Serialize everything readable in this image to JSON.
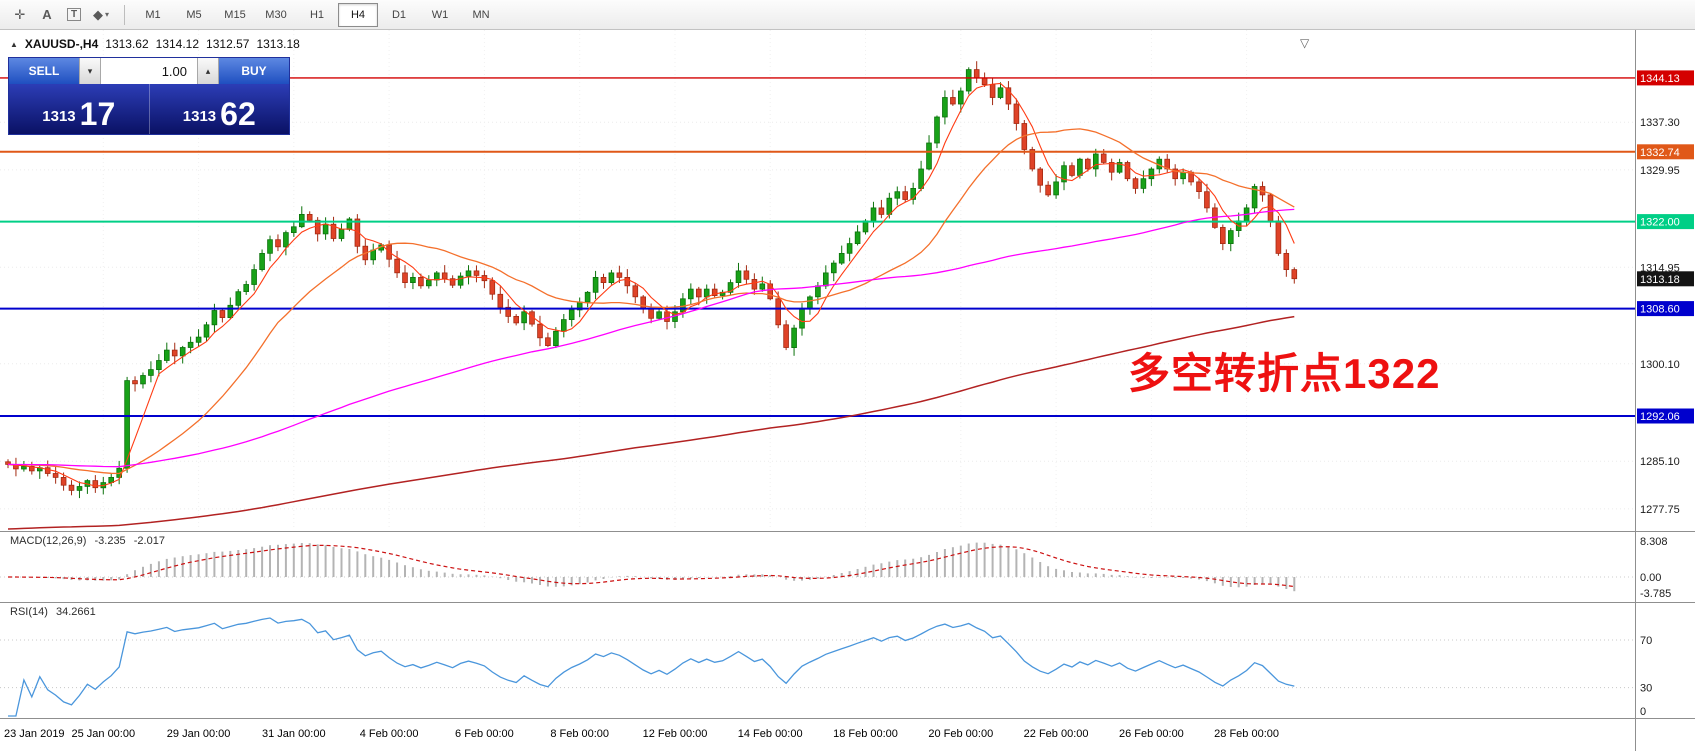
{
  "toolbar": {
    "tools": [
      {
        "name": "crosshair-tool",
        "glyph": "✛"
      },
      {
        "name": "label-tool",
        "glyph": "A"
      },
      {
        "name": "text-tool",
        "glyph": "T",
        "boxed": true
      },
      {
        "name": "shapes-tool",
        "glyph": "◆",
        "dropdown": true
      }
    ],
    "timeframes": [
      {
        "label": "M1"
      },
      {
        "label": "M5"
      },
      {
        "label": "M15"
      },
      {
        "label": "M30"
      },
      {
        "label": "H1"
      },
      {
        "label": "H4",
        "active": true
      },
      {
        "label": "D1"
      },
      {
        "label": "W1"
      },
      {
        "label": "MN"
      }
    ]
  },
  "chart": {
    "header": {
      "collapse_icon": "▲",
      "symbol": "XAUUSD-,H4",
      "open": "1313.62",
      "high": "1314.12",
      "low": "1312.57",
      "close": "1313.18"
    },
    "trade_panel": {
      "sell_label": "SELL",
      "buy_label": "BUY",
      "volume": "1.00",
      "vol_up_icon": "▴",
      "vol_down_icon": "▾",
      "sell_price_main": "1313",
      "sell_price_big": "17",
      "buy_price_main": "1313",
      "buy_price_big": "62"
    },
    "annotation": {
      "text": "多空转折点1322",
      "color": "#ee1111"
    },
    "shift_marker_icon": "▽"
  },
  "macd": {
    "name": "MACD(12,26,9)",
    "value_main": "-3.235",
    "value_signal": "-2.017",
    "axis_labels": [
      "8.308",
      "0.00",
      "-3.785"
    ]
  },
  "rsi": {
    "name": "RSI(14)",
    "value": "34.2661",
    "axis_labels": [
      "70",
      "30",
      "0"
    ]
  },
  "chart_data": {
    "type": "candlestick",
    "symbol": "XAUUSD-",
    "timeframe": "H4",
    "current_bar": {
      "open": 1313.62,
      "high": 1314.12,
      "low": 1312.57,
      "close": 1313.18
    },
    "price_range": [
      1274.5,
      1351.5
    ],
    "bars_per_label": 12,
    "time_labels": [
      "23 Jan 2019",
      "25 Jan 00:00",
      "29 Jan 00:00",
      "31 Jan 00:00",
      "4 Feb 00:00",
      "6 Feb 00:00",
      "8 Feb 00:00",
      "12 Feb 00:00",
      "14 Feb 00:00",
      "18 Feb 00:00",
      "20 Feb 00:00",
      "22 Feb 00:00",
      "26 Feb 00:00",
      "28 Feb 00:00"
    ],
    "axis_price_labels": [
      "1337.30",
      "1329.95",
      "1314.95",
      "1300.10",
      "1285.10",
      "1277.75"
    ],
    "levels": [
      {
        "price": 1344.13,
        "label": "1344.13",
        "color": "#d40000",
        "width": 1.4
      },
      {
        "price": 1332.74,
        "label": "1332.74",
        "color": "#e05818",
        "width": 2
      },
      {
        "price": 1322.0,
        "label": "1322.00",
        "color": "#00cf86",
        "width": 2
      },
      {
        "price": 1308.6,
        "label": "1308.60",
        "color": "#0000cd",
        "width": 2
      },
      {
        "price": 1292.06,
        "label": "1292.06",
        "color": "#0000cd",
        "width": 2
      }
    ],
    "current_price_label": {
      "price": 1313.18,
      "label": "1313.18",
      "color": "#141414"
    },
    "candle_colors": {
      "up_fill": "#18a118",
      "up_stroke": "#0b720b",
      "down_fill": "#df4328",
      "down_stroke": "#a32a12"
    },
    "moving_averages": [
      {
        "name": "ma-fast",
        "period": 5,
        "color": "#ff3c14",
        "width": 1.1,
        "pad_offset": 0
      },
      {
        "name": "ma-mid",
        "period": 20,
        "color": "#f4702c",
        "width": 1.3,
        "pad_offset": 0
      },
      {
        "name": "ma-magenta",
        "period": 80,
        "color": "#ff00ff",
        "width": 1.3,
        "pad_offset": 0
      },
      {
        "name": "ma-slow",
        "period": 200,
        "color": "#b22222",
        "width": 1.5,
        "pad_offset": -10
      }
    ],
    "closes": [
      1284.6,
      1283.9,
      1284.3,
      1283.6,
      1284.1,
      1283.2,
      1282.6,
      1281.4,
      1280.6,
      1281.2,
      1282.1,
      1281.0,
      1281.8,
      1282.6,
      1284.0,
      1297.5,
      1297.0,
      1298.3,
      1299.2,
      1300.6,
      1302.2,
      1301.3,
      1302.6,
      1303.4,
      1304.2,
      1306.1,
      1308.3,
      1307.2,
      1309.1,
      1311.2,
      1312.3,
      1314.6,
      1317.1,
      1319.2,
      1318.1,
      1320.3,
      1321.2,
      1323.1,
      1322.2,
      1320.1,
      1321.6,
      1319.4,
      1320.8,
      1322.4,
      1318.2,
      1316.1,
      1317.6,
      1318.4,
      1316.2,
      1314.1,
      1312.6,
      1313.4,
      1312.1,
      1313.0,
      1314.1,
      1313.2,
      1312.2,
      1313.6,
      1314.4,
      1313.7,
      1312.9,
      1310.8,
      1308.8,
      1307.4,
      1306.4,
      1308.1,
      1306.2,
      1304.1,
      1302.9,
      1305.1,
      1306.9,
      1308.4,
      1309.6,
      1311.1,
      1313.4,
      1312.6,
      1314.1,
      1313.4,
      1312.1,
      1310.4,
      1308.6,
      1307.1,
      1308.1,
      1306.6,
      1308.1,
      1310.1,
      1311.6,
      1310.4,
      1311.6,
      1310.6,
      1311.1,
      1312.6,
      1314.4,
      1313.1,
      1311.6,
      1312.4,
      1310.1,
      1306.1,
      1302.6,
      1305.6,
      1308.6,
      1310.4,
      1312.1,
      1314.1,
      1315.6,
      1317.1,
      1318.6,
      1320.4,
      1322.1,
      1324.1,
      1323.1,
      1325.6,
      1326.6,
      1325.4,
      1327.1,
      1330.1,
      1334.1,
      1338.1,
      1341.1,
      1340.1,
      1342.1,
      1345.4,
      1344.1,
      1343.1,
      1341.1,
      1342.6,
      1340.1,
      1337.1,
      1333.1,
      1330.1,
      1327.6,
      1326.1,
      1328.1,
      1330.6,
      1329.1,
      1331.6,
      1330.1,
      1332.4,
      1331.1,
      1329.6,
      1331.1,
      1328.6,
      1327.1,
      1328.6,
      1330.1,
      1331.6,
      1330.1,
      1328.6,
      1329.6,
      1328.1,
      1326.6,
      1324.1,
      1321.1,
      1318.6,
      1320.6,
      1322.1,
      1324.1,
      1327.4,
      1326.1,
      1322.1,
      1317.1,
      1314.6,
      1313.2
    ],
    "indicators": {
      "macd": {
        "fast": 12,
        "slow": 26,
        "signal_period": 9,
        "histogram_color": "#b4b4b4",
        "signal_color": "#cc1111"
      },
      "rsi": {
        "period": 14,
        "color": "#4a96dc",
        "levels": [
          70,
          30
        ]
      }
    }
  }
}
